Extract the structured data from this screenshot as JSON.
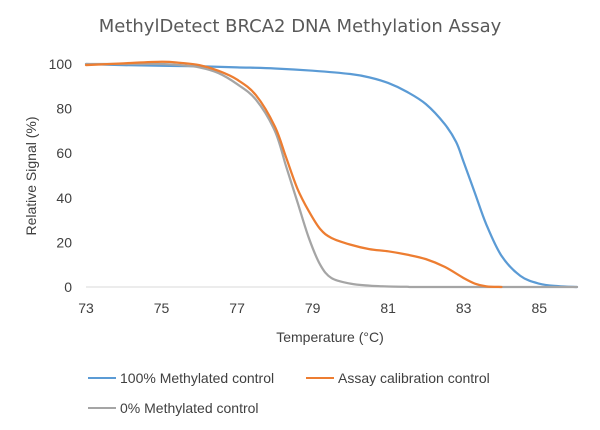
{
  "chart_data": {
    "type": "line",
    "title": "MethylDetect BRCA2 DNA Methylation Assay",
    "xlabel": "Temperature (°C)",
    "ylabel": "Relative Signal (%)",
    "xlim": [
      73,
      86
    ],
    "ylim": [
      0,
      100
    ],
    "x_ticks": [
      73,
      75,
      77,
      79,
      81,
      83,
      85
    ],
    "y_ticks": [
      0,
      20,
      40,
      60,
      80,
      100
    ],
    "grid": false,
    "legend_position": "bottom",
    "series": [
      {
        "name": "100% Methylated control",
        "color": "#5b9bd5",
        "x": [
          73,
          74,
          75,
          76,
          77,
          78,
          79,
          80,
          80.5,
          81,
          81.5,
          82,
          82.5,
          82.8,
          83,
          83.3,
          83.6,
          84,
          84.5,
          85,
          85.5,
          86
        ],
        "y": [
          100,
          99.5,
          99.2,
          99,
          98.5,
          98,
          97,
          95.5,
          94,
          91.5,
          87.5,
          82,
          73,
          65,
          56,
          42,
          28,
          14,
          5,
          1.5,
          0.4,
          0
        ]
      },
      {
        "name": "Assay calibration control",
        "color": "#ed7d31",
        "x": [
          73,
          74,
          75,
          75.5,
          76,
          76.5,
          77,
          77.5,
          78,
          78.3,
          78.6,
          78.9,
          79.2,
          79.5,
          80,
          80.5,
          81,
          81.5,
          82,
          82.5,
          83,
          83.3,
          83.6,
          84
        ],
        "y": [
          99.5,
          100.3,
          101,
          100.5,
          99.5,
          97,
          93,
          86,
          72,
          58,
          44,
          34,
          26,
          22,
          19,
          17,
          16,
          14.5,
          12.5,
          9,
          4,
          1.5,
          0.3,
          0
        ]
      },
      {
        "name": "0% Methylated control",
        "color": "#a5a5a5",
        "x": [
          73,
          74,
          75,
          75.5,
          76,
          76.5,
          77,
          77.5,
          78,
          78.3,
          78.6,
          78.9,
          79.2,
          79.5,
          80,
          80.5,
          81,
          81.5,
          82,
          86
        ],
        "y": [
          100,
          100,
          100,
          99.5,
          98.5,
          96,
          91,
          84,
          70,
          54,
          38,
          22,
          10,
          4,
          1.5,
          0.6,
          0.2,
          0.1,
          0,
          0
        ]
      }
    ]
  }
}
